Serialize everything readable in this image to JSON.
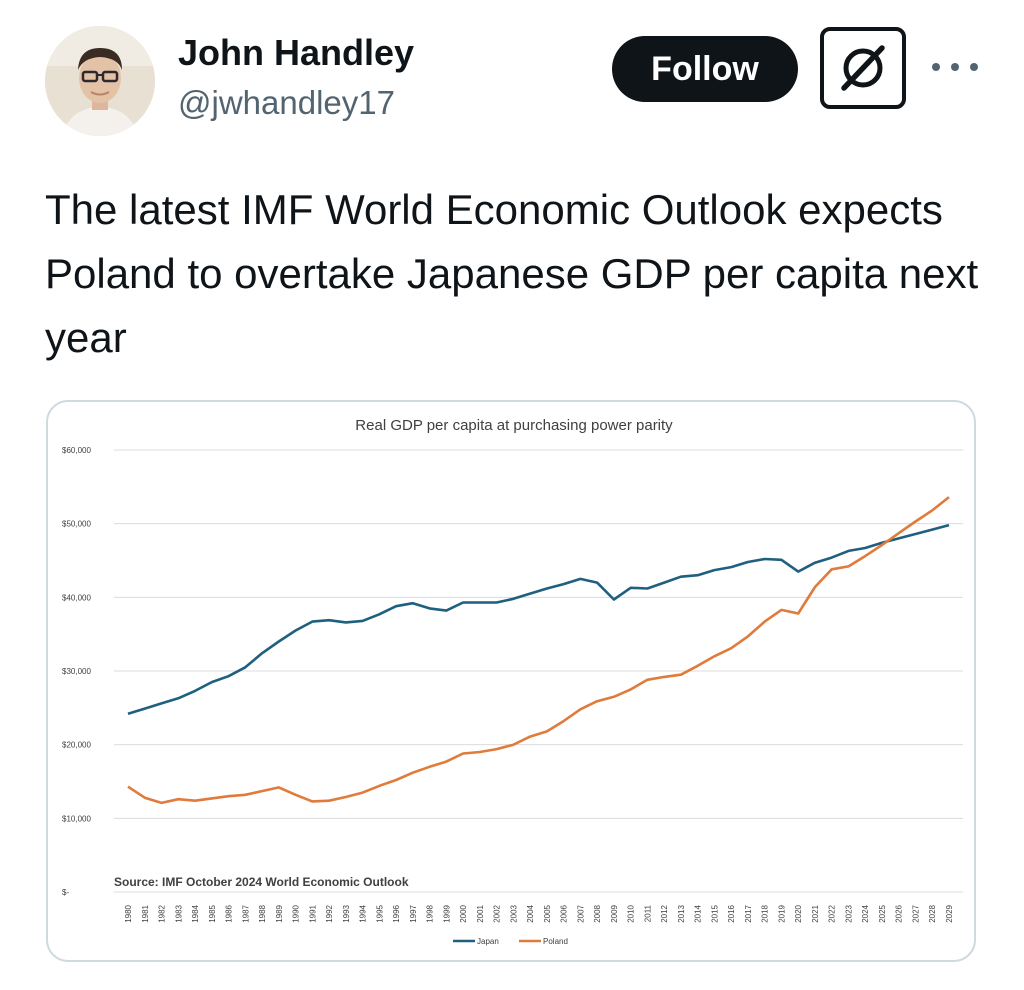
{
  "tweet": {
    "author": {
      "display_name": "John Handley",
      "handle": "@jwhandley17"
    },
    "follow_label": "Follow",
    "more_icon": "more-horizontal-icon",
    "grok_icon": "grok-icon",
    "text": "The latest IMF World Economic Outlook expects Poland to overtake Japanese GDP per capita next year"
  },
  "chart_data": {
    "type": "line",
    "title": "Real GDP per capita at purchasing power parity",
    "source_note": "Source: IMF October 2024 World Economic Outlook",
    "ylim": [
      0,
      60000
    ],
    "y_ticks": [
      0,
      10000,
      20000,
      30000,
      40000,
      50000,
      60000
    ],
    "y_tick_labels": [
      "$-",
      "$10,000",
      "$20,000",
      "$30,000",
      "$40,000",
      "$50,000",
      "$60,000"
    ],
    "grid": true,
    "legend_position": "bottom",
    "x": [
      "1980",
      "1981",
      "1982",
      "1983",
      "1984",
      "1985",
      "1986",
      "1987",
      "1988",
      "1989",
      "1990",
      "1991",
      "1992",
      "1993",
      "1994",
      "1995",
      "1996",
      "1997",
      "1998",
      "1999",
      "2000",
      "2001",
      "2002",
      "2003",
      "2004",
      "2005",
      "2006",
      "2007",
      "2008",
      "2009",
      "2010",
      "2011",
      "2012",
      "2013",
      "2014",
      "2015",
      "2016",
      "2017",
      "2018",
      "2019",
      "2020",
      "2021",
      "2022",
      "2023",
      "2024",
      "2025",
      "2026",
      "2027",
      "2028",
      "2029"
    ],
    "series": [
      {
        "name": "Japan",
        "color": "#1f5f7f",
        "values": [
          24200,
          24900,
          25600,
          26300,
          27300,
          28500,
          29300,
          30500,
          32400,
          34000,
          35500,
          36700,
          36900,
          36600,
          36800,
          37700,
          38800,
          39200,
          38500,
          38200,
          39300,
          39300,
          39300,
          39800,
          40500,
          41200,
          41800,
          42500,
          42000,
          39700,
          41300,
          41200,
          42000,
          42800,
          43000,
          43700,
          44100,
          44800,
          45200,
          45100,
          43500,
          44700,
          45400,
          46300,
          46700,
          47400,
          48000,
          48600,
          49200,
          49800
        ]
      },
      {
        "name": "Poland",
        "color": "#e07b3c",
        "values": [
          14300,
          12800,
          12100,
          12600,
          12400,
          12700,
          13000,
          13200,
          13700,
          14200,
          13200,
          12300,
          12400,
          12900,
          13500,
          14400,
          15200,
          16200,
          17000,
          17700,
          18800,
          19000,
          19400,
          20000,
          21100,
          21800,
          23200,
          24800,
          25900,
          26500,
          27500,
          28800,
          29200,
          29500,
          30700,
          32000,
          33100,
          34700,
          36700,
          38300,
          37800,
          41400,
          43800,
          44200,
          45600,
          47100,
          48700,
          50300,
          51800,
          53600
        ]
      }
    ]
  }
}
